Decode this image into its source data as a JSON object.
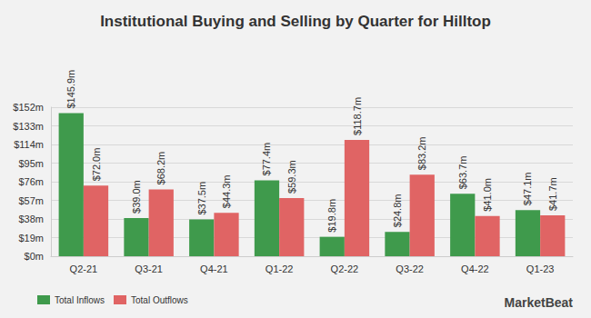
{
  "chart_data": {
    "type": "bar",
    "title": "Institutional Buying and Selling by Quarter for Hilltop",
    "categories": [
      "Q2-21",
      "Q3-21",
      "Q4-21",
      "Q1-22",
      "Q2-22",
      "Q3-22",
      "Q4-22",
      "Q1-23"
    ],
    "series": [
      {
        "name": "Total Inflows",
        "color": "#3f9a4c",
        "values": [
          145.9,
          39.0,
          37.5,
          77.4,
          19.8,
          24.8,
          63.7,
          47.1
        ],
        "value_labels": [
          "$145.9m",
          "$39.0m",
          "$37.5m",
          "$77.4m",
          "$19.8m",
          "$24.8m",
          "$63.7m",
          "$47.1m"
        ]
      },
      {
        "name": "Total Outflows",
        "color": "#e06464",
        "values": [
          72.0,
          68.2,
          44.3,
          59.3,
          118.7,
          83.2,
          41.0,
          41.7
        ],
        "value_labels": [
          "$72.0m",
          "$68.2m",
          "$44.3m",
          "$59.3m",
          "$118.7m",
          "$83.2m",
          "$41.0m",
          "$41.7m"
        ]
      }
    ],
    "ylim": [
      0,
      152
    ],
    "yticks": [
      {
        "value": 0,
        "label": "$0m"
      },
      {
        "value": 19,
        "label": "$19m"
      },
      {
        "value": 38,
        "label": "$38m"
      },
      {
        "value": 57,
        "label": "$57m"
      },
      {
        "value": 76,
        "label": "$76m"
      },
      {
        "value": 95,
        "label": "$95m"
      },
      {
        "value": 114,
        "label": "$114m"
      },
      {
        "value": 133,
        "label": "$133m"
      },
      {
        "value": 152,
        "label": "$152m"
      }
    ],
    "grid": true,
    "data_labels": true,
    "legend": "bottom-left",
    "annotations": [
      "MarketBeat"
    ]
  }
}
